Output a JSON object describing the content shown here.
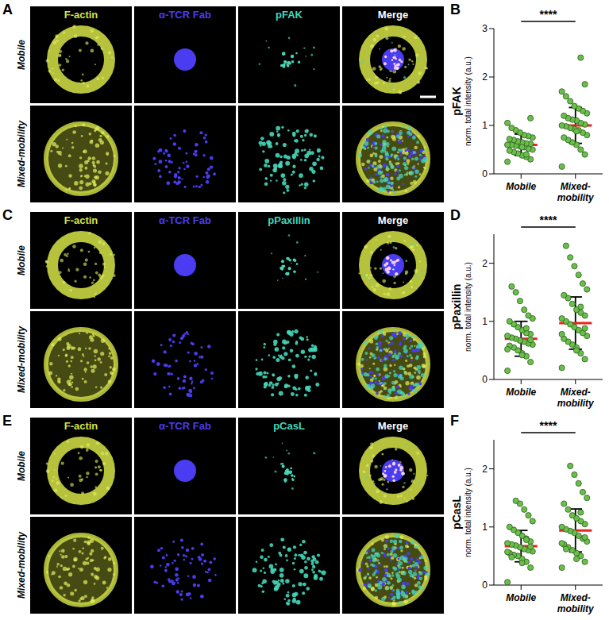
{
  "image_panels": [
    {
      "letter": "A",
      "columns": [
        "F-actin",
        "α-TCR Fab",
        "pFAK",
        "Merge"
      ],
      "rows": [
        "Mobile",
        "Mixed-mobility"
      ]
    },
    {
      "letter": "C",
      "columns": [
        "F-actin",
        "α-TCR Fab",
        "pPaxillin",
        "Merge"
      ],
      "rows": [
        "Mobile",
        "Mixed-mobility"
      ]
    },
    {
      "letter": "E",
      "columns": [
        "F-actin",
        "α-TCR Fab",
        "pCasL",
        "Merge"
      ],
      "rows": [
        "Mobile",
        "Mixed-mobility"
      ]
    }
  ],
  "chart_data": [
    {
      "letter": "B",
      "type": "scatter",
      "ylabel": "pFAK",
      "ylabel_units": "norm. total intensity (a.u.)",
      "categories": [
        "Mobile",
        "Mixed-mobility"
      ],
      "ylim": [
        0,
        3
      ],
      "yticks": [
        0,
        1,
        2,
        3
      ],
      "color": "#6abf4b",
      "values": [
        [
          0.25,
          0.3,
          0.35,
          0.38,
          0.42,
          0.45,
          0.48,
          0.5,
          0.52,
          0.55,
          0.57,
          0.58,
          0.6,
          0.6,
          0.62,
          0.63,
          0.65,
          0.67,
          0.7,
          0.72,
          0.75,
          0.78,
          0.8,
          0.85,
          0.9,
          0.95,
          1.05,
          1.15,
          0.4,
          0.55
        ],
        [
          0.15,
          0.4,
          0.5,
          0.6,
          0.65,
          0.7,
          0.75,
          0.8,
          0.85,
          0.9,
          0.92,
          0.95,
          0.98,
          1.0,
          1.02,
          1.05,
          1.1,
          1.12,
          1.15,
          1.2,
          1.25,
          1.3,
          1.35,
          1.4,
          1.5,
          1.6,
          1.7,
          1.85,
          2.4,
          0.88
        ]
      ],
      "mean": [
        0.6,
        1.0
      ],
      "sd": [
        0.22,
        0.37
      ],
      "significance": "****"
    },
    {
      "letter": "D",
      "type": "scatter",
      "ylabel": "pPaxillin",
      "ylabel_units": "norm. total intensity (a.u.)",
      "categories": [
        "Mobile",
        "Mixed-mobility"
      ],
      "ylim": [
        0,
        2.5
      ],
      "yticks": [
        0,
        1,
        2
      ],
      "color": "#6abf4b",
      "values": [
        [
          0.15,
          0.3,
          0.4,
          0.45,
          0.5,
          0.55,
          0.58,
          0.6,
          0.62,
          0.65,
          0.67,
          0.7,
          0.72,
          0.75,
          0.78,
          0.8,
          0.85,
          0.9,
          0.95,
          1.0,
          1.05,
          1.1,
          1.2,
          1.35,
          1.5,
          1.6,
          0.52,
          0.68,
          0.88,
          0.42
        ],
        [
          0.2,
          0.35,
          0.45,
          0.55,
          0.6,
          0.65,
          0.7,
          0.75,
          0.8,
          0.85,
          0.9,
          0.95,
          1.0,
          1.05,
          1.1,
          1.15,
          1.2,
          1.3,
          1.4,
          1.45,
          1.55,
          1.65,
          1.8,
          1.95,
          2.1,
          2.3,
          0.78,
          0.88,
          1.25,
          0.5
        ]
      ],
      "mean": [
        0.7,
        0.97
      ],
      "sd": [
        0.3,
        0.45
      ],
      "significance": "****"
    },
    {
      "letter": "F",
      "type": "scatter",
      "ylabel": "pCasL",
      "ylabel_units": "norm. total intensity (a.u.)",
      "categories": [
        "Mobile",
        "Mixed-mobility"
      ],
      "ylim": [
        0,
        2.5
      ],
      "yticks": [
        0,
        1,
        2
      ],
      "color": "#6abf4b",
      "values": [
        [
          0.05,
          0.3,
          0.4,
          0.45,
          0.5,
          0.52,
          0.55,
          0.58,
          0.6,
          0.62,
          0.65,
          0.68,
          0.7,
          0.72,
          0.75,
          0.8,
          0.85,
          0.9,
          0.95,
          1.0,
          1.1,
          1.2,
          1.3,
          1.4,
          1.45,
          0.48,
          0.57,
          0.66,
          0.78,
          0.38
        ],
        [
          0.3,
          0.4,
          0.5,
          0.55,
          0.6,
          0.65,
          0.7,
          0.75,
          0.8,
          0.85,
          0.9,
          0.93,
          0.96,
          1.0,
          1.05,
          1.1,
          1.15,
          1.2,
          1.3,
          1.4,
          1.5,
          1.6,
          1.75,
          1.9,
          2.05,
          0.62,
          0.72,
          0.82,
          1.25,
          0.45
        ]
      ],
      "mean": [
        0.67,
        0.94
      ],
      "sd": [
        0.27,
        0.37
      ],
      "significance": "****"
    }
  ]
}
